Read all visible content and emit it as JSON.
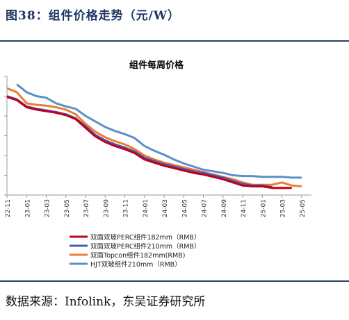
{
  "figure": {
    "title": "图38：组件价格走势（元/W）",
    "source": "数据来源：Infolink，东吴证券研究所"
  },
  "chart_data": {
    "type": "line",
    "title": "组件每周价格",
    "xlabel": "",
    "ylabel": "",
    "x_ticks": [
      "22-11",
      "23-01",
      "23-03",
      "23-05",
      "23-07",
      "23-09",
      "23-11",
      "24-01",
      "24-03",
      "24-05",
      "24-07",
      "24-09",
      "24-11",
      "25-01",
      "25-03",
      "25-05"
    ],
    "xlim": [
      0,
      31
    ],
    "ylim": [
      0.6,
      2.1
    ],
    "grid": false,
    "legend_position": "bottom-left",
    "series": [
      {
        "name": "双面双玻PERC组件182mm（RMB）",
        "color": "#c0001a",
        "x": [
          0,
          1,
          2,
          3,
          4,
          5,
          6,
          7,
          8,
          9,
          10,
          11,
          12,
          13,
          14,
          15,
          16,
          17,
          18,
          19,
          20,
          21,
          22,
          23,
          24,
          25,
          26,
          27,
          28,
          29,
          30
        ],
        "y": [
          1.84,
          1.8,
          1.71,
          1.68,
          1.66,
          1.64,
          1.61,
          1.56,
          1.45,
          1.34,
          1.27,
          1.22,
          1.18,
          1.13,
          1.05,
          1.01,
          0.97,
          0.94,
          0.91,
          0.88,
          0.86,
          0.83,
          0.8,
          0.76,
          0.72,
          0.71,
          0.71,
          0.69,
          0.69,
          0.69,
          null
        ]
      },
      {
        "name": "双面双玻PERC组件210mm（RMB）",
        "color": "#4a57b5",
        "x": [
          0,
          1,
          2,
          3,
          4,
          5,
          6,
          7,
          8,
          9,
          10,
          11,
          12,
          13,
          14,
          15,
          16,
          17,
          18,
          19,
          20,
          21,
          22,
          23,
          24,
          25,
          26,
          27,
          28,
          29,
          30
        ],
        "y": [
          1.85,
          1.81,
          1.72,
          1.69,
          1.67,
          1.65,
          1.62,
          1.57,
          1.47,
          1.36,
          1.29,
          1.24,
          1.2,
          1.15,
          1.07,
          1.03,
          0.99,
          0.96,
          0.93,
          0.9,
          0.88,
          0.85,
          0.82,
          0.78,
          0.74,
          0.72,
          0.72,
          0.7,
          null,
          null,
          null
        ]
      },
      {
        "name": "双面Topcon组件182mm(RMB)",
        "color": "#ed7d31",
        "x": [
          0,
          1,
          2,
          3,
          4,
          5,
          6,
          7,
          8,
          9,
          10,
          11,
          12,
          13,
          14,
          15,
          16,
          17,
          18,
          19,
          20,
          21,
          22,
          23,
          24,
          25,
          26,
          27,
          28,
          29,
          30
        ],
        "y": [
          1.95,
          1.9,
          1.76,
          1.74,
          1.73,
          1.71,
          1.68,
          1.62,
          1.5,
          1.4,
          1.33,
          1.28,
          1.24,
          1.18,
          1.1,
          1.05,
          1.01,
          0.98,
          0.95,
          0.92,
          0.89,
          0.86,
          0.83,
          0.8,
          0.76,
          0.73,
          0.73,
          0.73,
          0.76,
          0.72,
          0.71
        ]
      },
      {
        "name": "HJT双玻组件210mm（RMB）",
        "color": "#5b8fc9",
        "x": [
          1,
          2,
          3,
          4,
          5,
          6,
          7,
          8,
          9,
          10,
          11,
          12,
          13,
          14,
          15,
          16,
          17,
          18,
          19,
          20,
          21,
          22,
          23,
          24,
          25,
          26,
          27,
          28,
          29,
          30
        ],
        "y": [
          2.0,
          1.9,
          1.85,
          1.83,
          1.76,
          1.72,
          1.69,
          1.6,
          1.53,
          1.46,
          1.41,
          1.37,
          1.32,
          1.22,
          1.16,
          1.11,
          1.05,
          1.0,
          0.96,
          0.92,
          0.9,
          0.88,
          0.85,
          0.84,
          0.84,
          0.83,
          0.83,
          0.83,
          0.82,
          0.82
        ]
      }
    ]
  }
}
